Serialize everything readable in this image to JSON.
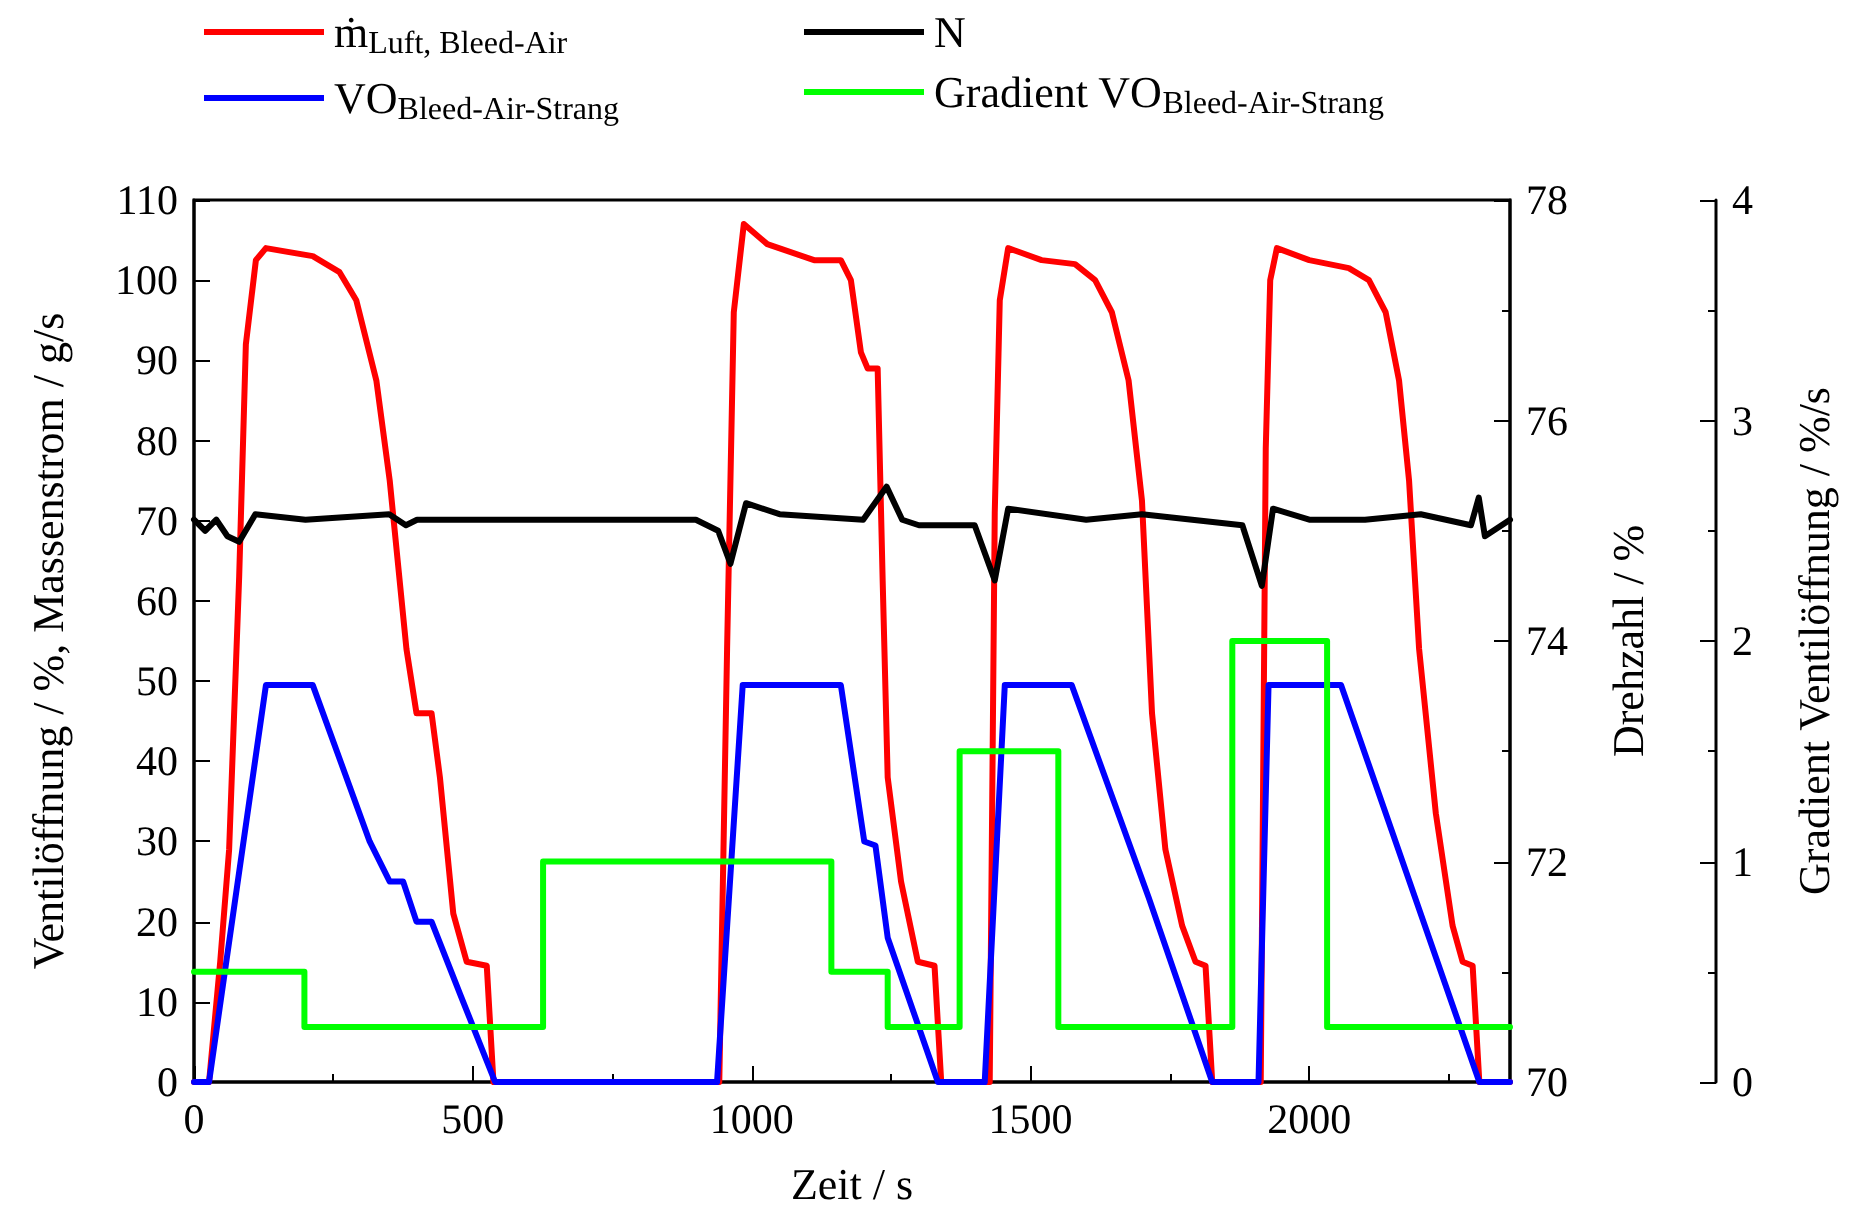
{
  "chart_data": {
    "type": "line",
    "xlabel": "Zeit / s",
    "ylabel": "Ventilöffnung / %, Massenstrom / g/s",
    "y2label": "Drehzahl / %",
    "y3label": "Gradient Ventilöffnung / %/s",
    "xlim": [
      0,
      2360
    ],
    "xticks": [
      0,
      500,
      1000,
      1500,
      2000
    ],
    "ylim": [
      0,
      110
    ],
    "yticks": [
      0,
      10,
      20,
      30,
      40,
      50,
      60,
      70,
      80,
      90,
      100,
      110
    ],
    "y2lim": [
      70,
      78
    ],
    "y2ticks": [
      70,
      72,
      74,
      76,
      78
    ],
    "y3lim": [
      0,
      4
    ],
    "y3ticks": [
      0,
      1,
      2,
      3,
      4
    ],
    "grid": false,
    "legend": "top",
    "series": [
      {
        "name": "ṁ$_{Luft, Bleed-Air}$",
        "color": "#ff0000",
        "x": [
          0,
          27,
          47,
          63,
          81,
          93,
          111,
          129,
          213,
          261,
          291,
          327,
          351,
          381,
          399,
          426,
          441,
          465,
          489,
          525,
          537,
          942,
          956,
          968,
          986,
          1028,
          1112,
          1160,
          1178,
          1196,
          1208,
          1226,
          1235,
          1244,
          1268,
          1298,
          1328,
          1340,
          1427,
          1436,
          1445,
          1460,
          1520,
          1580,
          1616,
          1646,
          1676,
          1700,
          1718,
          1742,
          1772,
          1796,
          1814,
          1826,
          1913,
          1922,
          1930,
          1942,
          2000,
          2071,
          2107,
          2137,
          2161,
          2179,
          2197,
          2227,
          2257,
          2275,
          2293,
          2305,
          2360
        ],
        "values": [
          0,
          0,
          15,
          29,
          63,
          92,
          102.5,
          104,
          103,
          101,
          97.5,
          87.5,
          75,
          54,
          46,
          46,
          38,
          21,
          15,
          14.5,
          0,
          0,
          54,
          96,
          107,
          104.5,
          102.5,
          102.5,
          100,
          91,
          89,
          89,
          62.5,
          38,
          25,
          15,
          14.5,
          0,
          0,
          71,
          97.5,
          104,
          102.5,
          102,
          100,
          96,
          87.5,
          72.5,
          46,
          29,
          19.5,
          15,
          14.5,
          0,
          0,
          79,
          100,
          104,
          102.5,
          101.5,
          100,
          96,
          87.5,
          75,
          54,
          33.5,
          19.5,
          15,
          14.5,
          0,
          0
        ]
      },
      {
        "name": "N",
        "color": "#000000",
        "axis": "y2",
        "x": [
          0,
          20,
          40,
          60,
          81,
          110,
          200,
          350,
          380,
          400,
          560,
          900,
          940,
          962,
          990,
          1050,
          1200,
          1242,
          1270,
          1300,
          1400,
          1436,
          1460,
          1600,
          1700,
          1880,
          1915,
          1935,
          2000,
          2100,
          2200,
          2290,
          2304,
          2315,
          2360
        ],
        "values": [
          75.1,
          75.0,
          75.1,
          74.95,
          74.9,
          75.15,
          75.1,
          75.15,
          75.05,
          75.1,
          75.1,
          75.1,
          75.0,
          74.7,
          75.25,
          75.15,
          75.1,
          75.4,
          75.1,
          75.05,
          75.05,
          74.55,
          75.2,
          75.1,
          75.15,
          75.05,
          74.5,
          75.2,
          75.1,
          75.1,
          75.15,
          75.05,
          75.3,
          74.95,
          75.1
        ]
      },
      {
        "name": "VO$_{Bleed-Air-Strang}$",
        "color": "#0000ff",
        "x": [
          0,
          27,
          129,
          213,
          315,
          351,
          375,
          399,
          426,
          477,
          540,
          938,
          984,
          1160,
          1202,
          1222,
          1244,
          1334,
          1418,
          1454,
          1574,
          1712,
          1826,
          1909,
          1927,
          2057,
          2305,
          2360
        ],
        "values": [
          0,
          0,
          49.5,
          49.5,
          30,
          25,
          25,
          20,
          20,
          11,
          0,
          0,
          49.5,
          49.5,
          30,
          29.5,
          18,
          0,
          0,
          49.5,
          49.5,
          23,
          0,
          0,
          49.5,
          49.5,
          0,
          0
        ]
      },
      {
        "name": "Gradient VO$_{Bleed-Air-Strang}$",
        "color": "#00ff00",
        "type": "step",
        "axis": "y3",
        "x": [
          0,
          198,
          626,
          1143,
          1244,
          1373,
          1550,
          1862,
          2032,
          2360
        ],
        "values": [
          0.5,
          0.25,
          1,
          0.5,
          0.25,
          1.5,
          0.25,
          2,
          0.25,
          0.25
        ]
      }
    ]
  }
}
